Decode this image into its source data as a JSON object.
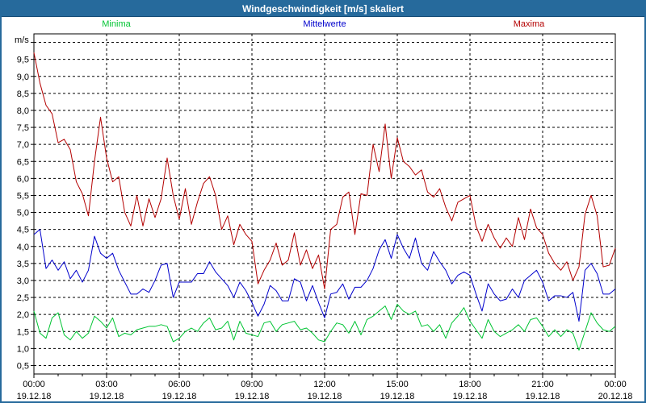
{
  "window": {
    "title": "Windgeschwindigkeit [m/s] skaliert"
  },
  "colors": {
    "titlebar_bg": "#266a9c",
    "titlebar_text": "#ffffff",
    "page_border": "#266a9c",
    "plot_bg": "#ffffff",
    "axis_frame": "#000000",
    "gridline": "#000000",
    "tick_label": "#000000",
    "minima": "#00c432",
    "mittelwerte": "#0000cc",
    "maxima": "#b40000"
  },
  "legend": [
    {
      "label": "Minima",
      "color": "#00c432"
    },
    {
      "label": "Mittelwerte",
      "color": "#0000cc"
    },
    {
      "label": "Maxima",
      "color": "#b40000"
    }
  ],
  "axis": {
    "unit_label": "m/s",
    "y_min": 0.25,
    "y_max": 10.25,
    "y_ticks": [
      {
        "v": 0.5,
        "label": "0,5"
      },
      {
        "v": 1.0,
        "label": "1,0"
      },
      {
        "v": 1.5,
        "label": "1,5"
      },
      {
        "v": 2.0,
        "label": "2,0"
      },
      {
        "v": 2.5,
        "label": "2,5"
      },
      {
        "v": 3.0,
        "label": "3,0"
      },
      {
        "v": 3.5,
        "label": "3,5"
      },
      {
        "v": 4.0,
        "label": "4,0"
      },
      {
        "v": 4.5,
        "label": "4,5"
      },
      {
        "v": 5.0,
        "label": "5,0"
      },
      {
        "v": 5.5,
        "label": "5,5"
      },
      {
        "v": 6.0,
        "label": "6,0"
      },
      {
        "v": 6.5,
        "label": "6,5"
      },
      {
        "v": 7.0,
        "label": "7,0"
      },
      {
        "v": 7.5,
        "label": "7,5"
      },
      {
        "v": 8.0,
        "label": "8,0"
      },
      {
        "v": 8.5,
        "label": "8,5"
      },
      {
        "v": 9.0,
        "label": "9,0"
      },
      {
        "v": 9.5,
        "label": "9,5"
      },
      {
        "v": 10.0,
        "label": ""
      }
    ],
    "x_major_step_minutes": 180,
    "x_minor_step_minutes": 60,
    "x_total_minutes": 1440,
    "x_labels": [
      {
        "time": "00:00",
        "date": "19.12.18"
      },
      {
        "time": "03:00",
        "date": "19.12.18"
      },
      {
        "time": "06:00",
        "date": "19.12.18"
      },
      {
        "time": "09:00",
        "date": "19.12.18"
      },
      {
        "time": "12:00",
        "date": "19.12.18"
      },
      {
        "time": "15:00",
        "date": "19.12.18"
      },
      {
        "time": "18:00",
        "date": "19.12.18"
      },
      {
        "time": "21:00",
        "date": "19.12.18"
      },
      {
        "time": "00:00",
        "date": "20.12.18"
      }
    ]
  },
  "chart_data": {
    "type": "line",
    "title": "Windgeschwindigkeit [m/s] skaliert",
    "xlabel": "",
    "ylabel": "m/s",
    "ylim": [
      0.25,
      10.25
    ],
    "grid": "dashed",
    "legend_position": "top",
    "x_start": "00:00 19.12.18",
    "x_end": "00:00 20.12.18",
    "x_step_minutes": 15,
    "series": [
      {
        "name": "Minima",
        "color": "#00c432",
        "values": [
          2.1,
          1.45,
          1.3,
          1.9,
          2.05,
          1.4,
          1.25,
          1.5,
          1.3,
          1.45,
          1.95,
          1.8,
          1.6,
          1.9,
          1.35,
          1.45,
          1.4,
          1.55,
          1.6,
          1.65,
          1.65,
          1.7,
          1.65,
          1.2,
          1.3,
          1.5,
          1.6,
          1.5,
          1.75,
          1.9,
          1.55,
          1.6,
          1.8,
          1.25,
          1.8,
          1.45,
          1.4,
          1.35,
          1.75,
          1.8,
          1.5,
          1.7,
          1.75,
          1.8,
          1.55,
          1.6,
          1.45,
          1.25,
          1.2,
          1.5,
          1.75,
          1.7,
          1.45,
          1.8,
          1.4,
          1.85,
          1.95,
          2.1,
          2.25,
          1.85,
          2.3,
          2.1,
          2.0,
          2.1,
          1.65,
          1.7,
          1.5,
          1.7,
          1.3,
          1.75,
          1.95,
          2.2,
          1.8,
          1.55,
          1.3,
          1.85,
          1.5,
          1.35,
          1.45,
          1.55,
          1.7,
          1.5,
          1.85,
          1.9,
          1.65,
          1.35,
          1.55,
          1.35,
          1.55,
          1.45,
          0.95,
          1.5,
          2.05,
          1.75,
          1.55,
          1.5,
          1.65
        ]
      },
      {
        "name": "Mittelwerte",
        "color": "#0000cc",
        "values": [
          4.35,
          4.5,
          3.35,
          3.6,
          3.3,
          3.55,
          3.05,
          3.3,
          2.95,
          3.3,
          4.3,
          3.8,
          3.65,
          3.8,
          3.3,
          2.95,
          2.6,
          2.6,
          2.75,
          2.65,
          3.0,
          3.45,
          3.5,
          2.5,
          2.95,
          2.95,
          2.95,
          3.2,
          3.2,
          3.55,
          3.25,
          3.05,
          2.85,
          2.5,
          2.95,
          2.7,
          2.35,
          1.95,
          2.3,
          2.85,
          2.7,
          2.4,
          2.4,
          3.05,
          2.95,
          2.4,
          2.85,
          2.35,
          1.9,
          2.6,
          2.65,
          2.9,
          2.45,
          2.8,
          2.8,
          3.0,
          3.35,
          3.9,
          4.2,
          3.65,
          4.35,
          3.95,
          3.65,
          4.25,
          3.5,
          3.3,
          3.85,
          3.55,
          3.3,
          2.9,
          3.15,
          3.25,
          3.15,
          2.6,
          2.1,
          2.9,
          2.6,
          2.4,
          2.45,
          2.75,
          2.5,
          3.0,
          3.15,
          3.3,
          2.95,
          2.4,
          2.55,
          2.55,
          2.5,
          2.65,
          1.8,
          3.3,
          3.5,
          3.2,
          2.6,
          2.6,
          2.75
        ]
      },
      {
        "name": "Maxima",
        "color": "#b40000",
        "values": [
          9.7,
          8.8,
          8.15,
          7.9,
          7.05,
          7.15,
          6.85,
          5.9,
          5.55,
          4.9,
          6.5,
          7.8,
          6.6,
          5.9,
          6.05,
          5.0,
          4.6,
          5.5,
          4.6,
          5.4,
          4.85,
          5.4,
          6.6,
          5.5,
          4.8,
          5.7,
          4.65,
          5.3,
          5.85,
          6.05,
          5.5,
          4.5,
          4.9,
          4.05,
          4.65,
          4.35,
          4.15,
          2.9,
          3.3,
          3.6,
          4.1,
          3.45,
          3.6,
          4.4,
          3.45,
          3.9,
          3.35,
          3.75,
          2.75,
          4.5,
          4.65,
          5.45,
          5.6,
          4.35,
          5.55,
          5.5,
          7.0,
          6.2,
          7.6,
          6.0,
          7.2,
          6.5,
          6.35,
          6.1,
          6.25,
          5.6,
          5.45,
          5.7,
          5.15,
          4.75,
          5.3,
          5.4,
          5.5,
          4.6,
          4.15,
          4.65,
          4.25,
          3.95,
          4.25,
          4.0,
          4.85,
          4.2,
          5.1,
          4.55,
          4.35,
          3.8,
          3.5,
          3.3,
          3.55,
          3.0,
          3.4,
          4.95,
          5.5,
          4.9,
          3.4,
          3.45,
          3.95
        ]
      }
    ]
  }
}
